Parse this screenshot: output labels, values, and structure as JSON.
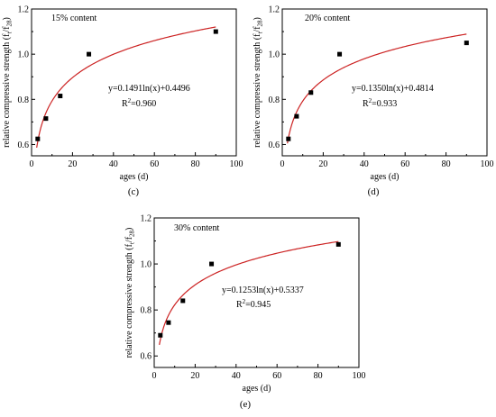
{
  "chart_data": [
    {
      "id": "c",
      "type": "scatter",
      "panel_label": "(c)",
      "inset_title": "15% content",
      "xlabel": "ages (d)",
      "ylabel_main": "relative compressive strength (f",
      "ylabel_sub": "t",
      "ylabel_mid": "/f",
      "ylabel_sub2": "28",
      "ylabel_end": ")",
      "xlim": [
        0,
        100
      ],
      "ylim": [
        0.55,
        1.2
      ],
      "xticks": [
        0,
        20,
        40,
        60,
        80,
        100
      ],
      "xtick_labels": [
        "0",
        "20",
        "40",
        "60",
        "80",
        "100"
      ],
      "yticks": [
        0.6,
        0.8,
        1.0,
        1.2
      ],
      "ytick_labels": [
        "0.6",
        "0.8",
        "1.0",
        "1.2"
      ],
      "points": {
        "x": [
          3,
          7,
          14,
          28,
          90
        ],
        "y": [
          0.625,
          0.715,
          0.815,
          1.0,
          1.1
        ]
      },
      "fit": {
        "a": 0.1491,
        "b": 0.4496,
        "x_start": 2.5,
        "x_end": 90
      },
      "equation": "y=0.1491ln(x)+0.4496",
      "r2_prefix": "R",
      "r2_sup": "2",
      "r2_value": "=0.960",
      "line_color": "#cc2222",
      "marker_color": "#000000"
    },
    {
      "id": "d",
      "type": "scatter",
      "panel_label": "(d)",
      "inset_title": "20% content",
      "xlabel": "ages (d)",
      "ylabel_main": "relative compressive strength (f",
      "ylabel_sub": "t",
      "ylabel_mid": "/f",
      "ylabel_sub2": "28",
      "ylabel_end": ")",
      "xlim": [
        0,
        100
      ],
      "ylim": [
        0.55,
        1.2
      ],
      "xticks": [
        0,
        20,
        40,
        60,
        80,
        100
      ],
      "xtick_labels": [
        "0",
        "20",
        "40",
        "60",
        "80",
        "100"
      ],
      "yticks": [
        0.6,
        0.8,
        1.0,
        1.2
      ],
      "ytick_labels": [
        "0.6",
        "0.8",
        "1.0",
        "1.2"
      ],
      "points": {
        "x": [
          3,
          7,
          14,
          28,
          90
        ],
        "y": [
          0.625,
          0.725,
          0.83,
          1.0,
          1.05
        ]
      },
      "fit": {
        "a": 0.135,
        "b": 0.4814,
        "x_start": 2.5,
        "x_end": 90
      },
      "equation": "y=0.1350ln(x)+0.4814",
      "r2_prefix": "R",
      "r2_sup": "2",
      "r2_value": "=0.933",
      "line_color": "#cc2222",
      "marker_color": "#000000"
    },
    {
      "id": "e",
      "type": "scatter",
      "panel_label": "(e)",
      "inset_title": "30% content",
      "xlabel": "ages (d)",
      "ylabel_main": "relative compressive strength (f",
      "ylabel_sub": "t",
      "ylabel_mid": "/f",
      "ylabel_sub2": "28",
      "ylabel_end": ")",
      "xlim": [
        0,
        100
      ],
      "ylim": [
        0.55,
        1.2
      ],
      "xticks": [
        0,
        20,
        40,
        60,
        80,
        100
      ],
      "xtick_labels": [
        "0",
        "20",
        "40",
        "60",
        "80",
        "100"
      ],
      "yticks": [
        0.6,
        0.8,
        1.0,
        1.2
      ],
      "ytick_labels": [
        "0.6",
        "0.8",
        "1.0",
        "1.2"
      ],
      "points": {
        "x": [
          3,
          7,
          14,
          28,
          90
        ],
        "y": [
          0.69,
          0.745,
          0.84,
          1.0,
          1.085
        ]
      },
      "fit": {
        "a": 0.1253,
        "b": 0.5337,
        "x_start": 2.5,
        "x_end": 90
      },
      "equation": "y=0.1253ln(x)+0.5337",
      "r2_prefix": "R",
      "r2_sup": "2",
      "r2_value": "=0.945",
      "line_color": "#cc2222",
      "marker_color": "#000000"
    }
  ]
}
